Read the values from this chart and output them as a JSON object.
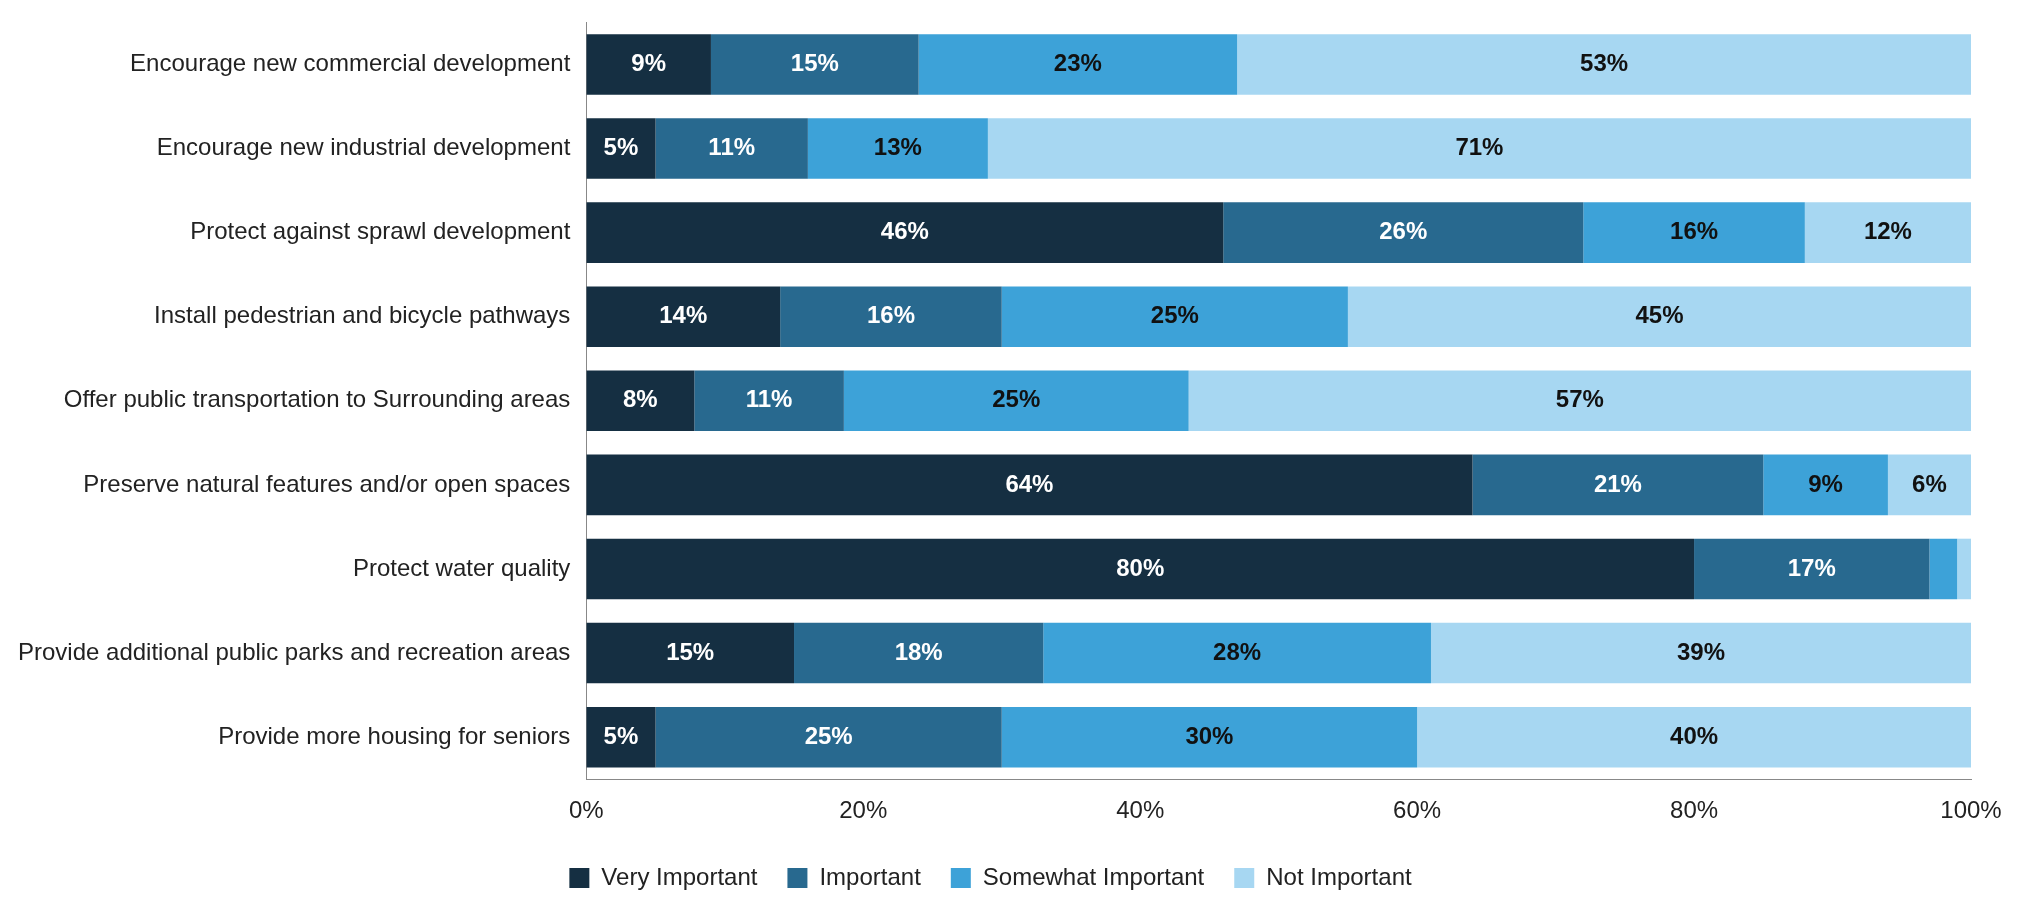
{
  "chart_data": {
    "type": "bar",
    "orientation": "horizontal",
    "stacked": true,
    "categories": [
      "Encourage new commercial development",
      "Encourage new industrial development",
      "Protect against sprawl development",
      "Install pedestrian and bicycle pathways",
      "Offer public transportation to Surrounding areas",
      "Preserve natural features and/or open spaces",
      "Protect water quality",
      "Provide additional public parks and recreation areas",
      "Provide more housing for seniors"
    ],
    "series": [
      {
        "name": "Very Important",
        "color": "#152f42",
        "values": [
          9,
          5,
          46,
          14,
          7.8,
          64,
          80,
          15,
          5
        ],
        "value_labels": [
          "9%",
          "5%",
          "46%",
          "14%",
          "8%",
          "64%",
          "80%",
          "15%",
          "5%"
        ]
      },
      {
        "name": "Important",
        "color": "#28698f",
        "values": [
          15,
          11,
          26,
          16,
          10.8,
          21,
          17,
          18,
          25
        ],
        "value_labels": [
          "15%",
          "11%",
          "26%",
          "16%",
          "11%",
          "21%",
          "17%",
          "18%",
          "25%"
        ]
      },
      {
        "name": "Somewhat Important",
        "color": "#3da2d8",
        "values": [
          23,
          13,
          16,
          25,
          24.9,
          9,
          2,
          28,
          30
        ],
        "value_labels": [
          "23%",
          "13%",
          "16%",
          "25%",
          "25%",
          "9%",
          null,
          "28%",
          "30%"
        ]
      },
      {
        "name": "Not Important",
        "color": "#a7d7f2",
        "values": [
          53,
          71,
          12,
          45,
          56.5,
          6,
          1,
          39,
          40
        ],
        "value_labels": [
          "53%",
          "71%",
          "12%",
          "45%",
          "57%",
          "6%",
          null,
          "39%",
          "40%"
        ]
      }
    ],
    "xlim": [
      0,
      100
    ],
    "xticks": [
      {
        "value": 0,
        "label": "0%"
      },
      {
        "value": 20,
        "label": "20%"
      },
      {
        "value": 40,
        "label": "40%"
      },
      {
        "value": 60,
        "label": "60%"
      },
      {
        "value": 80,
        "label": "80%"
      },
      {
        "value": 100,
        "label": "100%"
      }
    ],
    "grid": false,
    "legend": "bottom"
  }
}
